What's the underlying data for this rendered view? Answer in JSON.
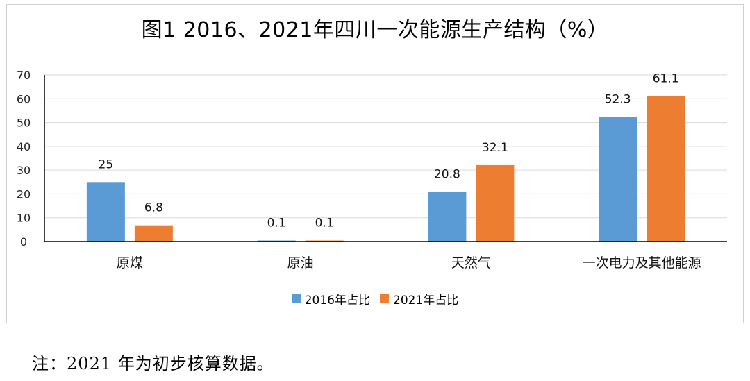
{
  "chart_data": {
    "type": "bar",
    "title": "图1  2016、2021年四川一次能源生产结构（%）",
    "categories": [
      "原煤",
      "原油",
      "天然气",
      "一次电力及其他能源"
    ],
    "series": [
      {
        "name": "2016年占比",
        "color": "#5b9bd5",
        "values": [
          25,
          0.1,
          20.8,
          52.3
        ]
      },
      {
        "name": "2021年占比",
        "color": "#ed7d31",
        "values": [
          6.8,
          0.1,
          32.1,
          61.1
        ]
      }
    ],
    "ylim": [
      0,
      70
    ],
    "yticks": [
      0,
      10,
      20,
      30,
      40,
      50,
      60,
      70
    ],
    "grid": true,
    "legend_position": "bottom"
  },
  "note": "注：2021 年为初步核算数据。"
}
